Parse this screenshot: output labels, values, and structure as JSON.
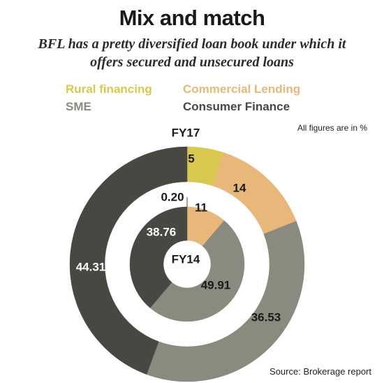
{
  "title": "Mix and match",
  "subtitle_line1": "BFL has a pretty diversified loan book under which it",
  "subtitle_line2": "offers secured and unsecured loans",
  "legend": [
    {
      "label": "Rural financing",
      "color": "#d9c850"
    },
    {
      "label": "Commercial Lending",
      "color": "#e8b77a"
    },
    {
      "label": "SME",
      "color": "#8a8a7e"
    },
    {
      "label": "Consumer Finance",
      "color": "#474842"
    }
  ],
  "note": "All figures are in %",
  "source": "Source: Brokerage report",
  "chart_data": {
    "type": "pie",
    "series": [
      {
        "name": "FY17",
        "categories": [
          "Rural financing",
          "Commercial Lending",
          "SME",
          "Consumer Finance"
        ],
        "values": [
          5,
          14,
          36.53,
          44.31
        ],
        "labels": [
          "5",
          "14",
          "36.53",
          "44.31"
        ]
      },
      {
        "name": "FY14",
        "categories": [
          "Rural financing",
          "Commercial Lending",
          "SME",
          "Consumer Finance"
        ],
        "values": [
          0.2,
          11,
          49.91,
          38.76
        ],
        "labels": [
          "0.20",
          "11",
          "49.91",
          "38.76"
        ]
      }
    ],
    "colors": [
      "#d9c850",
      "#e8b77a",
      "#8a8a7e",
      "#474842"
    ]
  }
}
